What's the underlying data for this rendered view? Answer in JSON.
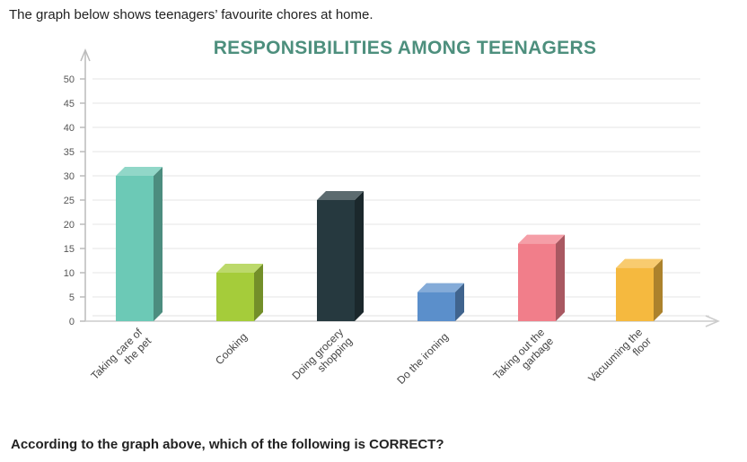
{
  "intro_text": "The graph below shows teenagers’ favourite chores at home.",
  "question_text": "According to the graph above, which of the following is CORRECT?",
  "chart_data": {
    "type": "bar",
    "title": "RESPONSIBILITIES AMONG TEENAGERS",
    "xlabel": "",
    "ylabel": "",
    "categories": [
      [
        "Taking care of",
        "the pet"
      ],
      [
        "Cooking"
      ],
      [
        "Doing grocery",
        "shopping"
      ],
      [
        "Do the ironing"
      ],
      [
        "Taking out the",
        "garbage"
      ],
      [
        "Vacuuming the",
        "floor"
      ]
    ],
    "values": [
      30,
      10,
      25,
      6,
      16,
      11
    ],
    "colors": [
      "#6cc9b6",
      "#a5cc3a",
      "#26393f",
      "#5b8fcb",
      "#f17e8a",
      "#f5b93f"
    ],
    "yticks": [
      0,
      5,
      10,
      15,
      20,
      25,
      30,
      35,
      40,
      45,
      50
    ],
    "ylim": [
      0,
      50
    ],
    "grid": true,
    "title_color": "#4d8f7d"
  }
}
